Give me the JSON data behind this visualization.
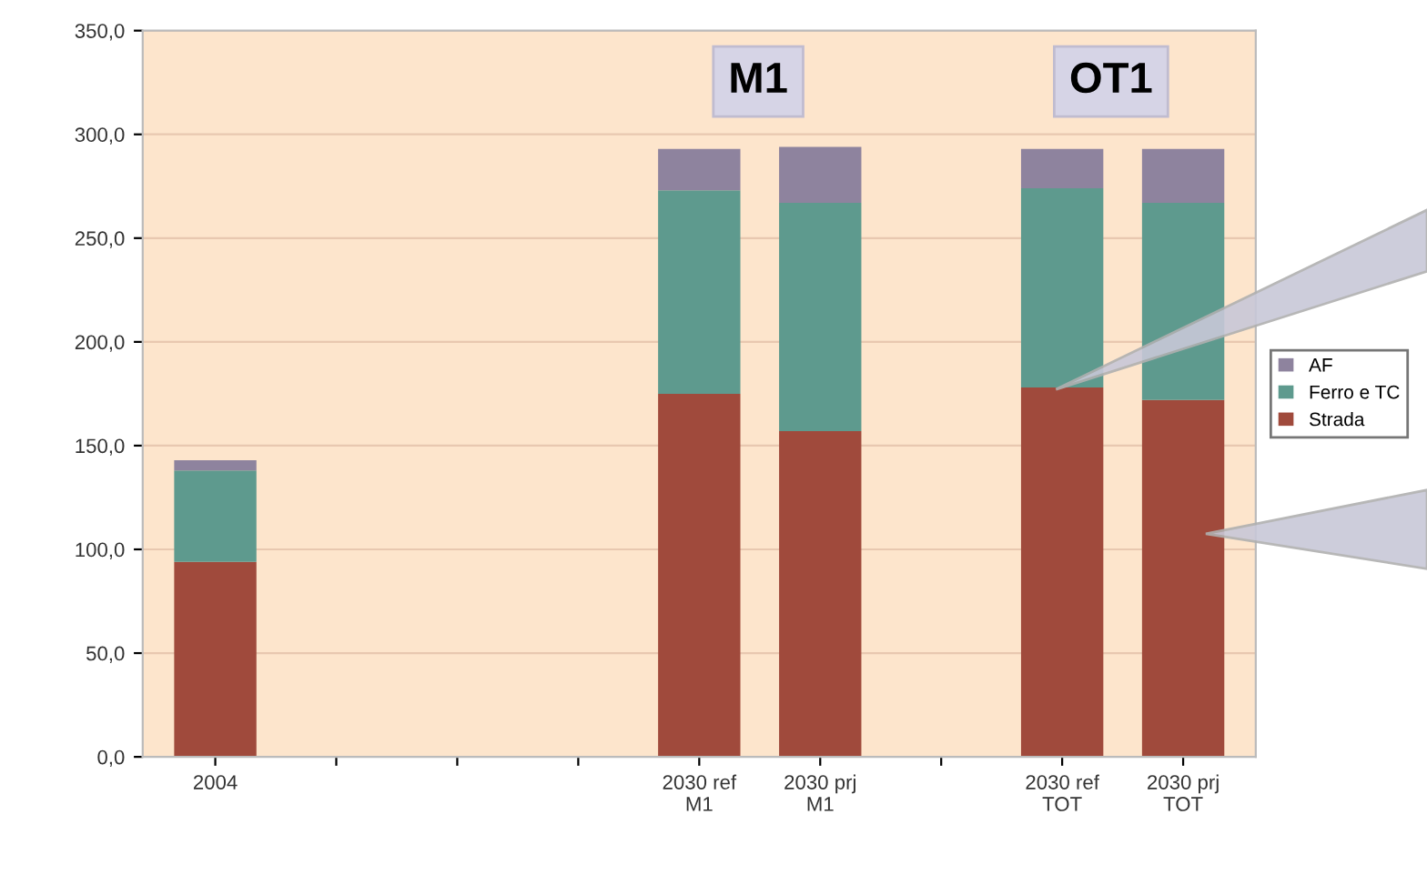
{
  "chart_data": {
    "type": "bar",
    "stacked": true,
    "categories": [
      "2004",
      null,
      null,
      null,
      "2030 ref\nM1",
      "2030 prj\nM1",
      null,
      "2030 ref\nTOT",
      "2030 prj\nTOT"
    ],
    "series": [
      {
        "name": "Strada",
        "color": "#a04a3c",
        "values": [
          94,
          null,
          null,
          null,
          175,
          157,
          null,
          178,
          172
        ]
      },
      {
        "name": "Ferro e TC",
        "color": "#5e9a8e",
        "values": [
          44,
          null,
          null,
          null,
          98,
          110,
          null,
          96,
          95
        ]
      },
      {
        "name": "AF",
        "color": "#8e839e",
        "values": [
          5,
          null,
          null,
          null,
          20,
          27,
          null,
          19,
          26
        ]
      }
    ],
    "ylim": [
      0,
      350
    ],
    "yticks": [
      {
        "value": 0,
        "label": "0,0"
      },
      {
        "value": 50,
        "label": "50,0"
      },
      {
        "value": 100,
        "label": "100,0"
      },
      {
        "value": 150,
        "label": "150,0"
      },
      {
        "value": 200,
        "label": "200,0"
      },
      {
        "value": 250,
        "label": "250,0"
      },
      {
        "value": 300,
        "label": "300,0"
      },
      {
        "value": 350,
        "label": "350,0"
      }
    ],
    "grid": "y",
    "legend": "right",
    "annotations": [
      "M1",
      "OT1"
    ]
  }
}
